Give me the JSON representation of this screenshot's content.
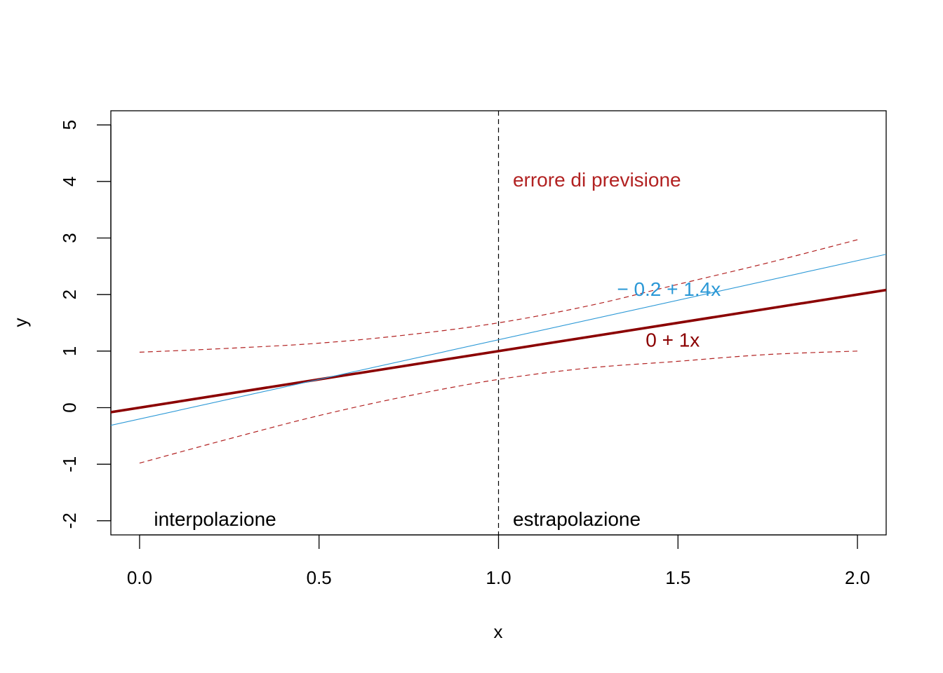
{
  "chart_data": {
    "type": "line",
    "title": "",
    "xlabel": "x",
    "ylabel": "y",
    "xlim": [
      -0.08,
      2.08
    ],
    "ylim": [
      -2.25,
      5.25
    ],
    "x_ticks": [
      {
        "value": 0.0,
        "label": "0.0"
      },
      {
        "value": 0.5,
        "label": "0.5"
      },
      {
        "value": 1.0,
        "label": "1.0"
      },
      {
        "value": 1.5,
        "label": "1.5"
      },
      {
        "value": 2.0,
        "label": "2.0"
      }
    ],
    "y_ticks": [
      {
        "value": -2,
        "label": "-2"
      },
      {
        "value": -1,
        "label": "-1"
      },
      {
        "value": 0,
        "label": "0"
      },
      {
        "value": 1,
        "label": "1"
      },
      {
        "value": 2,
        "label": "2"
      },
      {
        "value": 3,
        "label": "3"
      },
      {
        "value": 4,
        "label": "4"
      },
      {
        "value": 5,
        "label": "5"
      }
    ],
    "grid": false,
    "series": [
      {
        "intercept": 0,
        "slope": 1,
        "color": "#8b0000",
        "style": "solid-thick"
      },
      {
        "intercept": -0.2,
        "slope": 1.4,
        "color": "#2b98d6",
        "style": "solid-thin"
      }
    ],
    "bands": [
      {
        "color": "#b22222",
        "style": "dashed",
        "upper": {
          "x": [
            0,
            0.25,
            0.5,
            0.75,
            1.0,
            1.25,
            1.5,
            1.75,
            2.0
          ],
          "y": [
            0.98,
            1.05,
            1.14,
            1.29,
            1.5,
            1.8,
            2.18,
            2.56,
            2.97
          ]
        },
        "lower": {
          "x": [
            0,
            0.25,
            0.5,
            0.75,
            1.0,
            1.25,
            1.5,
            1.75,
            2.0
          ],
          "y": [
            -0.98,
            -0.55,
            -0.14,
            0.21,
            0.5,
            0.7,
            0.82,
            0.94,
            1.0
          ]
        }
      }
    ],
    "vline": {
      "x": 1.0,
      "color": "#000000",
      "style": "dashed"
    },
    "annotations": [
      {
        "text": "errore di previsione",
        "x": 1.04,
        "y": 4.0,
        "color": "#b22222"
      },
      {
        "text": "− 0.2 + 1.4x",
        "x": 1.33,
        "y": 2.07,
        "color": "#2b98d6"
      },
      {
        "text": "0 + 1x",
        "x": 1.41,
        "y": 1.17,
        "color": "#8b0000"
      },
      {
        "text": "interpolazione",
        "x": 0.04,
        "y": -2.0,
        "color": "#000000"
      },
      {
        "text": "estrapolazione",
        "x": 1.04,
        "y": -2.0,
        "color": "#000000"
      }
    ]
  }
}
